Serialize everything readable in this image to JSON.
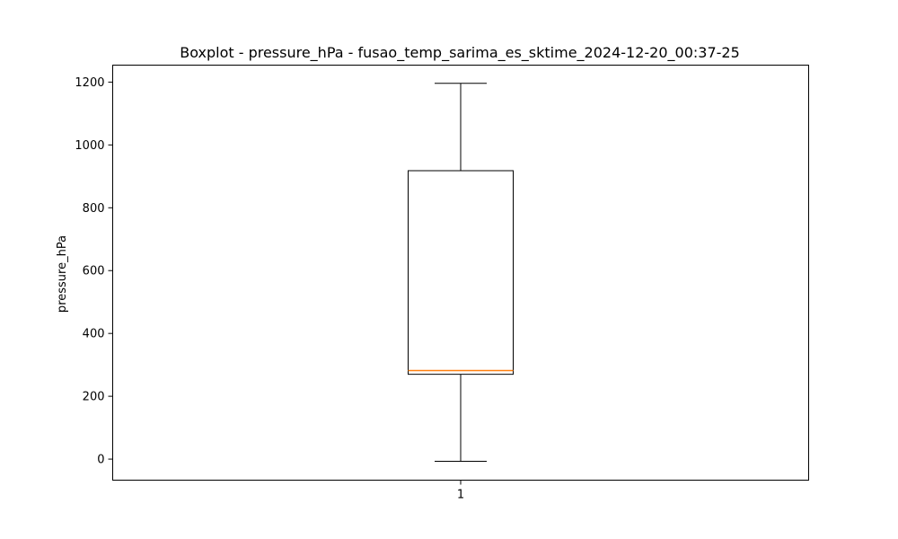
{
  "chart_data": {
    "type": "boxplot",
    "title": "Boxplot - pressure_hPa - fusao_temp_sarima_es_sktime_2024-12-20_00:37-25",
    "xlabel": "",
    "ylabel": "pressure_hPa",
    "categories": [
      "1"
    ],
    "boxes": [
      {
        "category": "1",
        "whisker_low": -7,
        "q1": 270,
        "median": 282,
        "q3": 918,
        "whisker_high": 1196
      }
    ],
    "ylim": [
      -67,
      1254
    ],
    "yticks": [
      0,
      200,
      400,
      600,
      800,
      1000,
      1200
    ],
    "grid": false,
    "colors": {
      "box": "#000000",
      "median": "#ff7f0e",
      "frame": "#000000"
    }
  }
}
